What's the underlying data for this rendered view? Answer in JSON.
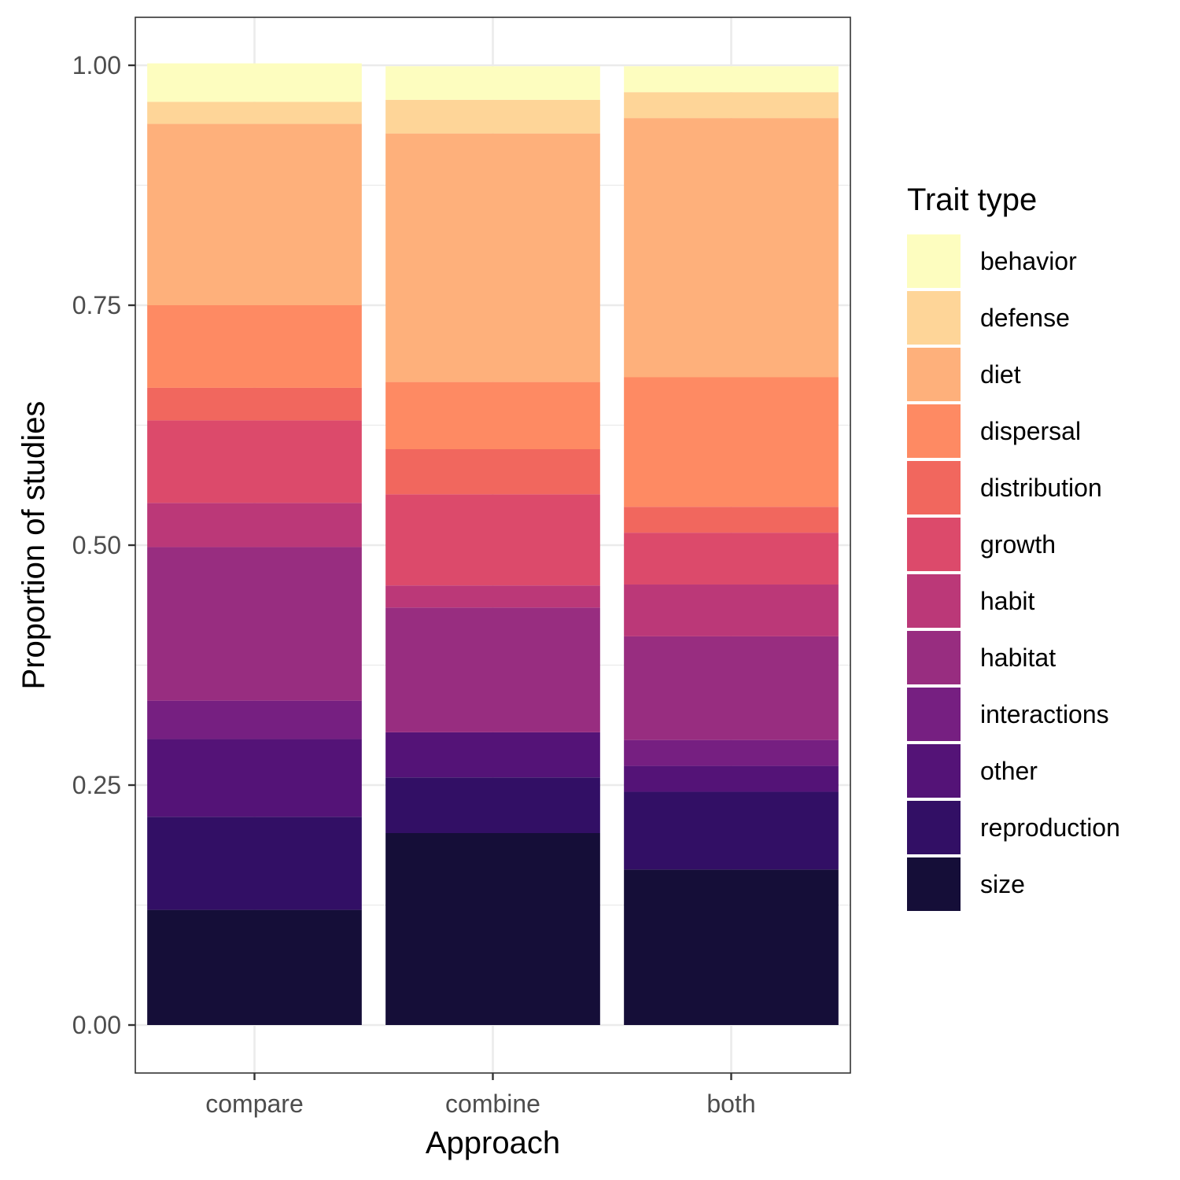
{
  "chart_data": {
    "type": "bar",
    "stacked": true,
    "xlabel": "Approach",
    "ylabel": "Proportion of studies",
    "ylim": [
      -0.05,
      1.05
    ],
    "yticks": [
      0.0,
      0.25,
      0.5,
      0.75,
      1.0
    ],
    "ytick_labels": [
      "0.00",
      "0.25",
      "0.50",
      "0.75",
      "1.00"
    ],
    "categories": [
      "compare",
      "combine",
      "both"
    ],
    "legend": {
      "title": "Trait type",
      "placement": "right"
    },
    "series": [
      {
        "name": "size",
        "color": "#150E38",
        "values": [
          0.12,
          0.2,
          0.162
        ]
      },
      {
        "name": "reproduction",
        "color": "#320F65",
        "values": [
          0.097,
          0.058,
          0.081
        ]
      },
      {
        "name": "other",
        "color": "#541377",
        "values": [
          0.081,
          0.047,
          0.027
        ]
      },
      {
        "name": "interactions",
        "color": "#761F81",
        "values": [
          0.04,
          0.0,
          0.027
        ]
      },
      {
        "name": "habitat",
        "color": "#982D80",
        "values": [
          0.16,
          0.13,
          0.108
        ]
      },
      {
        "name": "habit",
        "color": "#BB3878",
        "values": [
          0.046,
          0.023,
          0.054
        ]
      },
      {
        "name": "growth",
        "color": "#DC4A6B",
        "values": [
          0.086,
          0.095,
          0.054
        ]
      },
      {
        "name": "distribution",
        "color": "#F1675E",
        "values": [
          0.034,
          0.047,
          0.027
        ]
      },
      {
        "name": "dispersal",
        "color": "#FE8A63",
        "values": [
          0.086,
          0.07,
          0.135
        ]
      },
      {
        "name": "diet",
        "color": "#FEB07B",
        "values": [
          0.189,
          0.259,
          0.27
        ]
      },
      {
        "name": "defense",
        "color": "#FED598",
        "values": [
          0.023,
          0.035,
          0.027
        ]
      },
      {
        "name": "behavior",
        "color": "#FDFDBF",
        "values": [
          0.04,
          0.035,
          0.027
        ]
      }
    ]
  }
}
